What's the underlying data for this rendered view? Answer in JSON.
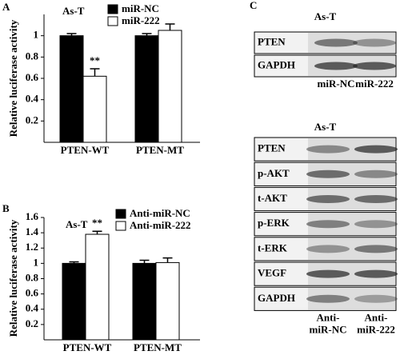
{
  "chart_data": [
    {
      "type": "bar",
      "panel": "A",
      "title": "As-T",
      "y_label": "Relative luciferase activity",
      "categories": [
        "PTEN-WT",
        "PTEN-MT"
      ],
      "series": [
        {
          "name": "miR-NC",
          "color": "#000000",
          "values": [
            1.0,
            1.0
          ],
          "errors": [
            0.02,
            0.02
          ]
        },
        {
          "name": "miR-222",
          "color": "#ffffff",
          "values": [
            0.62,
            1.05
          ],
          "errors": [
            0.07,
            0.06
          ]
        }
      ],
      "annotations": [
        {
          "text": "**",
          "series": 1,
          "category": 0
        }
      ],
      "ylim": [
        0,
        1.2
      ],
      "yticks": [
        0.2,
        0.4,
        0.6,
        0.8,
        1
      ]
    },
    {
      "type": "bar",
      "panel": "B",
      "title": "As-T",
      "y_label": "Relative luciferase activity",
      "categories": [
        "PTEN-WT",
        "PTEN-MT"
      ],
      "series": [
        {
          "name": "Anti-miR-NC",
          "color": "#000000",
          "values": [
            1.0,
            1.0
          ],
          "errors": [
            0.02,
            0.04
          ]
        },
        {
          "name": "Anti-miR-222",
          "color": "#ffffff",
          "values": [
            1.38,
            1.01
          ],
          "errors": [
            0.04,
            0.06
          ]
        }
      ],
      "annotations": [
        {
          "text": "**",
          "series": 1,
          "category": 0
        }
      ],
      "ylim": [
        0,
        1.6
      ],
      "yticks": [
        0.2,
        0.4,
        0.6,
        0.8,
        1,
        1.2,
        1.4,
        1.6
      ]
    }
  ],
  "blots": {
    "panel": "C",
    "groups": [
      {
        "title": "As-T",
        "rows": [
          "PTEN",
          "GAPDH"
        ],
        "lanes": [
          [
            "miR-NC"
          ],
          [
            "miR-222"
          ]
        ]
      },
      {
        "title": "As-T",
        "rows": [
          "PTEN",
          "p-AKT",
          "t-AKT",
          "p-ERK",
          "t-ERK",
          "VEGF",
          "GAPDH"
        ],
        "lanes": [
          [
            "Anti-",
            "miR-NC"
          ],
          [
            "Anti-",
            "miR-222"
          ]
        ]
      }
    ]
  }
}
